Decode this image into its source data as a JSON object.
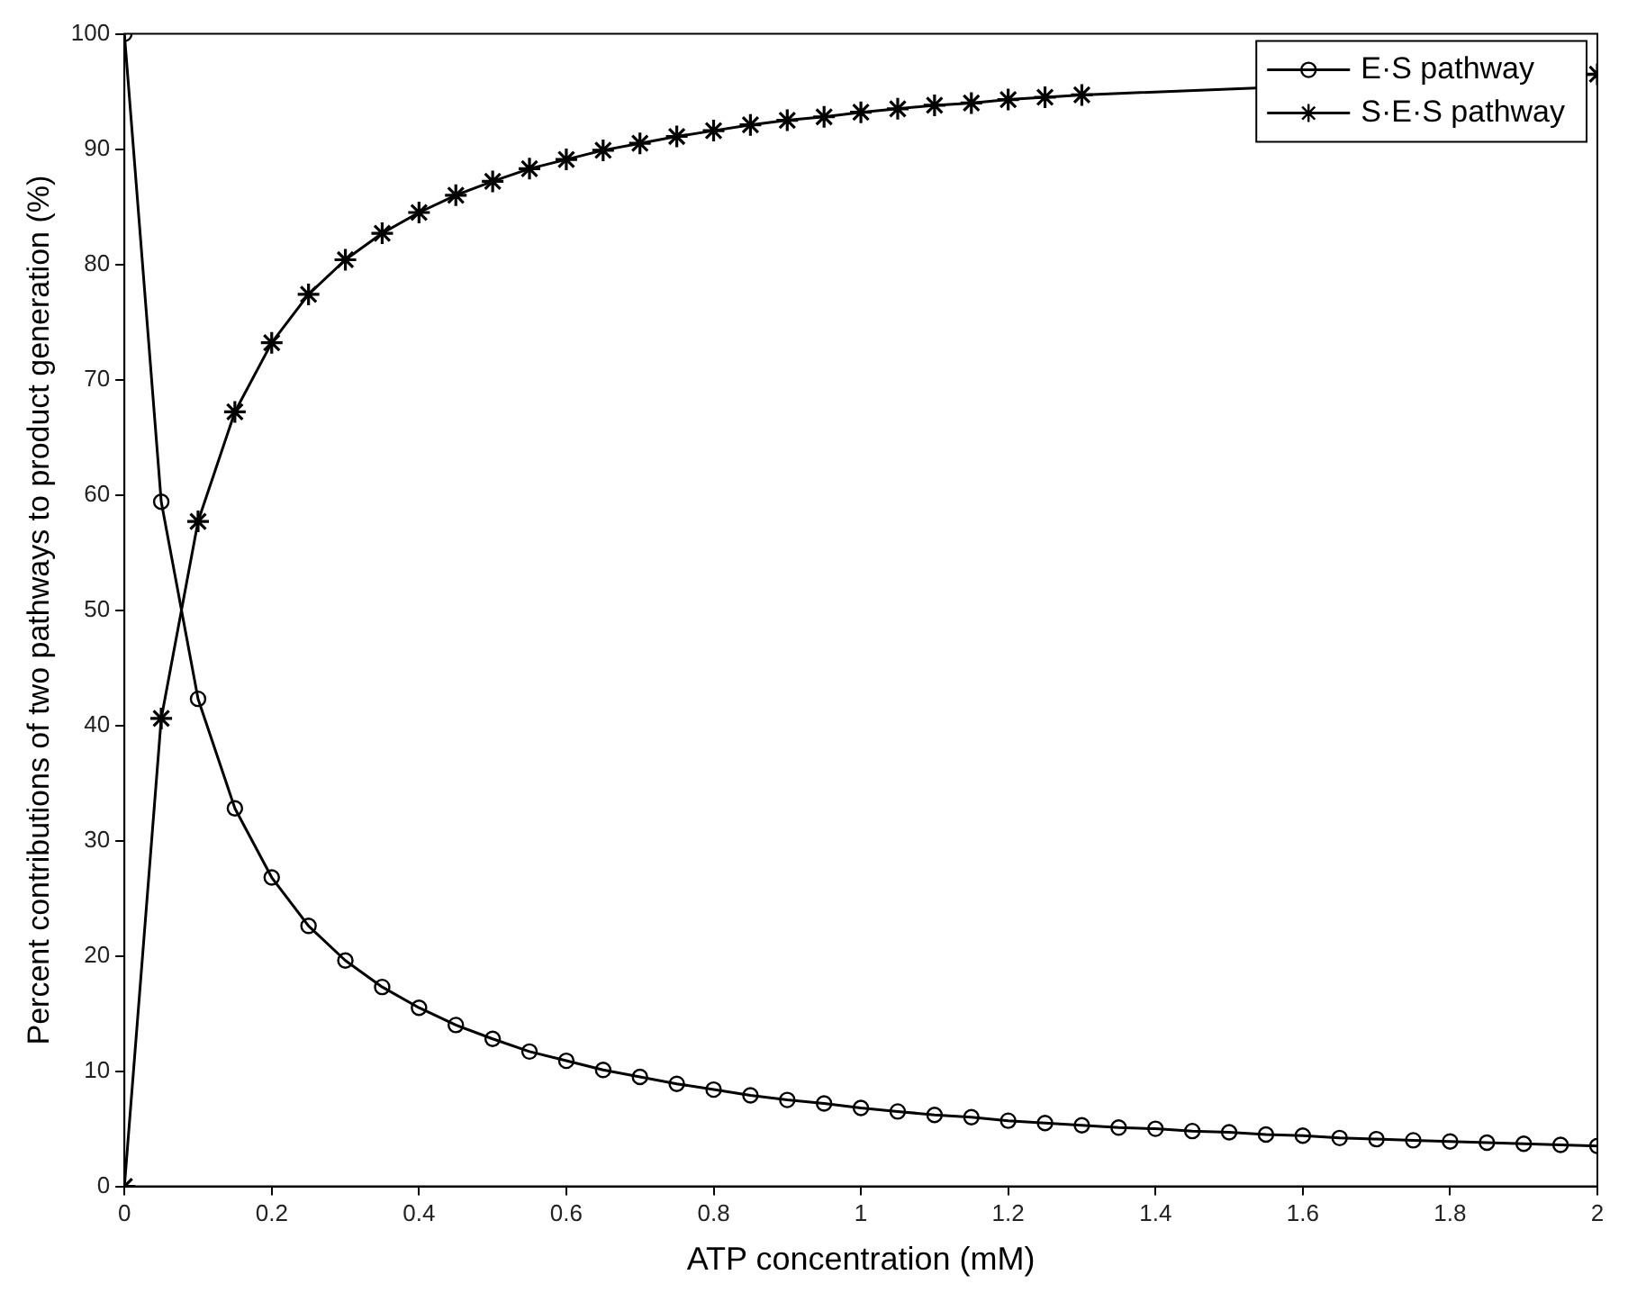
{
  "chart_data": {
    "type": "line",
    "xlabel": "ATP concentration (mM)",
    "ylabel": "Percent contributions of two pathways to product generation (%)",
    "x": [
      0,
      0.05,
      0.1,
      0.15,
      0.2,
      0.25,
      0.3,
      0.35,
      0.4,
      0.45,
      0.5,
      0.55,
      0.6,
      0.65,
      0.7,
      0.75,
      0.8,
      0.85,
      0.9,
      0.95,
      1,
      1.05,
      1.1,
      1.15,
      1.2,
      1.25,
      1.3,
      1.35,
      1.4,
      1.45,
      1.5,
      1.55,
      1.6,
      1.65,
      1.7,
      1.75,
      1.8,
      1.85,
      1.9,
      1.95,
      2
    ],
    "series": [
      {
        "name": "E·S pathway",
        "color": "#000000",
        "marker": "circle",
        "values": [
          100,
          59.4,
          42.3,
          32.8,
          26.8,
          22.6,
          19.6,
          17.3,
          15.5,
          14.0,
          12.8,
          11.7,
          10.9,
          10.1,
          9.5,
          8.9,
          8.4,
          7.9,
          7.5,
          7.2,
          6.8,
          6.5,
          6.2,
          6.0,
          5.7,
          5.5,
          5.3,
          5.1,
          5.0,
          4.8,
          4.7,
          4.5,
          4.4,
          4.2,
          4.1,
          4.0,
          3.9,
          3.8,
          3.7,
          3.6,
          3.5
        ]
      },
      {
        "name": "S·E·S pathway",
        "color": "#000000",
        "marker": "cross",
        "values": [
          0,
          40.6,
          57.7,
          67.2,
          73.2,
          77.4,
          80.4,
          82.7,
          84.5,
          86.0,
          87.2,
          88.3,
          89.1,
          89.9,
          90.5,
          91.1,
          91.6,
          92.1,
          92.5,
          92.8,
          93.2,
          93.5,
          93.8,
          94.0,
          94.3,
          94.5,
          94.7,
          null,
          null,
          null,
          null,
          null,
          null,
          null,
          null,
          null,
          null,
          null,
          null,
          null,
          96.5
        ]
      }
    ],
    "xlim": [
      0,
      2
    ],
    "xticks": [
      0,
      0.2,
      0.4,
      0.6,
      0.8,
      1,
      1.2,
      1.4,
      1.6,
      1.8,
      2
    ],
    "ylim": [
      0,
      100
    ],
    "yticks": [
      0,
      10,
      20,
      30,
      40,
      50,
      60,
      70,
      80,
      90,
      100
    ],
    "grid": false,
    "legend": "top right",
    "line_style": "solid"
  }
}
